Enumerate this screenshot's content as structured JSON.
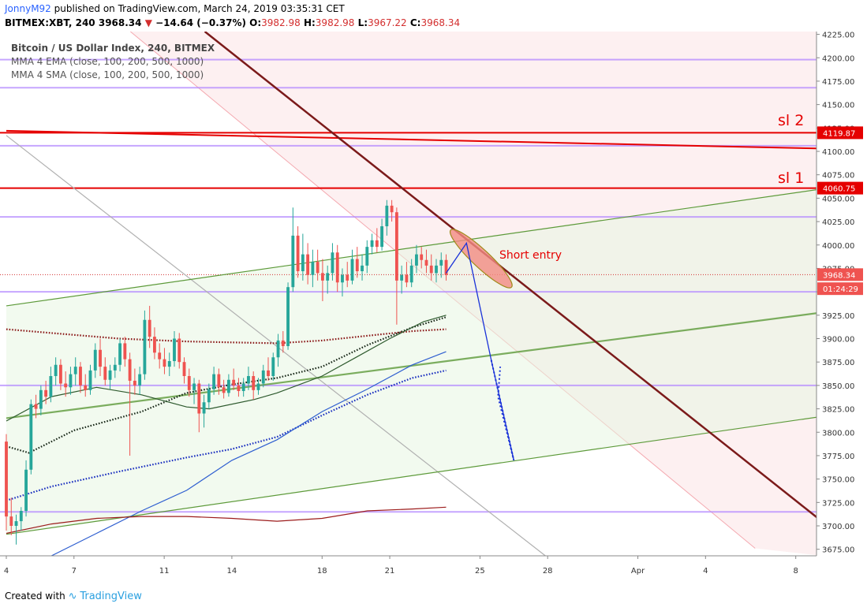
{
  "header": {
    "author": "JonnyM92",
    "published": "published on TradingView.com, March 24, 2019 03:35:31 CET",
    "symbol": "BITMEX:XBT, 240",
    "last": "3968.34",
    "change": "−14.64 (−0.37%)",
    "o_label": "O:",
    "o": "3982.98",
    "h_label": "H:",
    "h": "3982.98",
    "l_label": "L:",
    "l": "3967.22",
    "c_label": "C:",
    "c": "3968.34"
  },
  "legend": {
    "title": "Bitcoin / US Dollar Index, 240, BITMEX",
    "ema": "MMA 4 EMA (close, 100, 200, 500, 1000)",
    "sma": "MMA 4 SMA (close, 100, 200, 500, 1000)"
  },
  "annotations": {
    "sl1": "sl 1",
    "sl2": "sl 2",
    "short_entry": "Short entry"
  },
  "price_badges": {
    "sl2": "4119.87",
    "sl1": "4060.75",
    "last": "3968.34",
    "countdown": "01:24:29"
  },
  "footer": {
    "created_with": "Created with",
    "brand": "TradingView"
  },
  "colors": {
    "up": "#26a69a",
    "down": "#ef5350",
    "sl": "#e50000",
    "level": "#b388ff",
    "trend": "#7b1a1a",
    "channel": "#5d9a3a",
    "projection": "#1a32d8"
  },
  "chart_data": {
    "type": "candlestick",
    "title": "Bitcoin / US Dollar Index, 240, BITMEX",
    "x_ticks": [
      {
        "label": "4",
        "t": 0
      },
      {
        "label": "7",
        "t": 3
      },
      {
        "label": "11",
        "t": 7
      },
      {
        "label": "14",
        "t": 10
      },
      {
        "label": "18",
        "t": 14
      },
      {
        "label": "21",
        "t": 17
      },
      {
        "label": "25",
        "t": 21
      },
      {
        "label": "28",
        "t": 24
      },
      {
        "label": "Apr",
        "t": 28
      },
      {
        "label": "4",
        "t": 31
      },
      {
        "label": "8",
        "t": 35
      }
    ],
    "x_range": [
      0,
      36.2
    ],
    "ylim": [
      3668,
      4228
    ],
    "y_ticks": [
      3675,
      3700,
      3725,
      3750,
      3775,
      3800,
      3825,
      3850,
      3875,
      3900,
      3925,
      3950,
      3975,
      4000,
      4025,
      4050,
      4075,
      4100,
      4125,
      4150,
      4175,
      4200,
      4225
    ],
    "horizontal_levels": [
      4198,
      4168,
      4106,
      4030,
      3950,
      3850,
      3715
    ],
    "stop_levels": [
      4119.87,
      4060.75
    ],
    "sl2_sloped_line": {
      "points": [
        [
          0,
          4122
        ],
        [
          36.2,
          4103
        ]
      ]
    },
    "descending_trendline": {
      "points": [
        [
          8.8,
          4228
        ],
        [
          36.2,
          3704
        ]
      ]
    },
    "channel_upper": {
      "points": [
        [
          0,
          3935
        ],
        [
          36.2,
          4060
        ]
      ]
    },
    "channel_middle": {
      "points": [
        [
          0,
          3815
        ],
        [
          36.2,
          3928
        ]
      ]
    },
    "channel_lower": {
      "points": [
        [
          0,
          3691
        ],
        [
          36.2,
          3817
        ]
      ]
    },
    "gray_diagonal": {
      "points": [
        [
          0,
          4117
        ],
        [
          23.9,
          3668
        ]
      ]
    },
    "pink_zone_lower_edge": {
      "points": [
        [
          5.5,
          4228
        ],
        [
          33.2,
          3676
        ]
      ]
    },
    "short_entry_zone": {
      "center": [
        20.8,
        3988
      ],
      "from": [
        19.7,
        4016
      ],
      "to": [
        22.4,
        3955
      ]
    },
    "projection_path": [
      [
        19.5,
        3970
      ],
      [
        20.4,
        4002
      ],
      [
        21.5,
        3877
      ],
      [
        22.5,
        3770
      ],
      [
        21.8,
        3838
      ],
      [
        21.9,
        3870
      ]
    ],
    "ema_lines": [
      {
        "name": "EMA 100",
        "points": [
          [
            0,
            3785
          ],
          [
            1,
            3778
          ],
          [
            3,
            3802
          ],
          [
            6,
            3822
          ],
          [
            8,
            3842
          ],
          [
            10,
            3851
          ],
          [
            12,
            3858
          ],
          [
            14,
            3870
          ],
          [
            16,
            3893
          ],
          [
            18,
            3912
          ],
          [
            19.5,
            3923
          ]
        ]
      },
      {
        "name": "EMA 200",
        "points": [
          [
            0,
            3727
          ],
          [
            2,
            3742
          ],
          [
            5,
            3758
          ],
          [
            8,
            3773
          ],
          [
            10,
            3782
          ],
          [
            12,
            3795
          ],
          [
            14,
            3818
          ],
          [
            16,
            3840
          ],
          [
            18,
            3858
          ],
          [
            19.5,
            3866
          ]
        ]
      },
      {
        "name": "EMA 500",
        "points": [
          [
            0,
            3910
          ],
          [
            2,
            3906
          ],
          [
            5,
            3900
          ],
          [
            8,
            3897
          ],
          [
            10,
            3896
          ],
          [
            12,
            3895
          ],
          [
            14,
            3898
          ],
          [
            16,
            3903
          ],
          [
            18,
            3908
          ],
          [
            19.5,
            3910
          ]
        ]
      }
    ],
    "sma_lines": [
      {
        "name": "SMA 100",
        "points": [
          [
            0,
            3812
          ],
          [
            2,
            3838
          ],
          [
            4,
            3848
          ],
          [
            6,
            3840
          ],
          [
            8,
            3827
          ],
          [
            9,
            3825
          ],
          [
            11,
            3835
          ],
          [
            12,
            3842
          ],
          [
            14,
            3860
          ],
          [
            15.5,
            3880
          ],
          [
            17,
            3900
          ],
          [
            18.5,
            3918
          ],
          [
            19.5,
            3925
          ]
        ]
      },
      {
        "name": "SMA 200",
        "points": [
          [
            2,
            3668
          ],
          [
            4,
            3692
          ],
          [
            6,
            3716
          ],
          [
            8,
            3738
          ],
          [
            10,
            3770
          ],
          [
            12,
            3792
          ],
          [
            14,
            3822
          ],
          [
            16,
            3846
          ],
          [
            18,
            3872
          ],
          [
            19.5,
            3886
          ]
        ]
      },
      {
        "name": "SMA 500",
        "points": [
          [
            0,
            3692
          ],
          [
            2,
            3702
          ],
          [
            4,
            3708
          ],
          [
            6,
            3710
          ],
          [
            8,
            3710
          ],
          [
            10,
            3708
          ],
          [
            12,
            3705
          ],
          [
            14,
            3708
          ],
          [
            16,
            3716
          ],
          [
            18,
            3718
          ],
          [
            19.5,
            3720
          ]
        ]
      }
    ],
    "candles_ohlc": [
      [
        3790,
        3798,
        3695,
        3710
      ],
      [
        3710,
        3730,
        3690,
        3700
      ],
      [
        3700,
        3712,
        3680,
        3705
      ],
      [
        3705,
        3720,
        3695,
        3716
      ],
      [
        3716,
        3770,
        3710,
        3760
      ],
      [
        3760,
        3835,
        3755,
        3830
      ],
      [
        3830,
        3840,
        3815,
        3825
      ],
      [
        3825,
        3850,
        3818,
        3845
      ],
      [
        3845,
        3855,
        3830,
        3838
      ],
      [
        3838,
        3870,
        3832,
        3860
      ],
      [
        3860,
        3880,
        3850,
        3872
      ],
      [
        3872,
        3878,
        3845,
        3852
      ],
      [
        3852,
        3865,
        3838,
        3848
      ],
      [
        3848,
        3870,
        3840,
        3862
      ],
      [
        3862,
        3880,
        3850,
        3870
      ],
      [
        3870,
        3875,
        3842,
        3850
      ],
      [
        3850,
        3862,
        3838,
        3845
      ],
      [
        3845,
        3872,
        3840,
        3866
      ],
      [
        3866,
        3895,
        3858,
        3888
      ],
      [
        3888,
        3900,
        3860,
        3870
      ],
      [
        3870,
        3880,
        3850,
        3856
      ],
      [
        3856,
        3872,
        3846,
        3866
      ],
      [
        3866,
        3880,
        3858,
        3872
      ],
      [
        3872,
        3900,
        3865,
        3895
      ],
      [
        3895,
        3902,
        3870,
        3878
      ],
      [
        3878,
        3885,
        3775,
        3855
      ],
      [
        3855,
        3868,
        3840,
        3850
      ],
      [
        3850,
        3870,
        3840,
        3862
      ],
      [
        3862,
        3930,
        3856,
        3920
      ],
      [
        3920,
        3935,
        3890,
        3902
      ],
      [
        3902,
        3912,
        3878,
        3885
      ],
      [
        3885,
        3895,
        3868,
        3878
      ],
      [
        3878,
        3890,
        3862,
        3870
      ],
      [
        3870,
        3885,
        3860,
        3876
      ],
      [
        3876,
        3908,
        3870,
        3900
      ],
      [
        3900,
        3906,
        3868,
        3875
      ],
      [
        3875,
        3880,
        3852,
        3860
      ],
      [
        3860,
        3868,
        3838,
        3845
      ],
      [
        3845,
        3858,
        3830,
        3852
      ],
      [
        3852,
        3856,
        3800,
        3820
      ],
      [
        3820,
        3840,
        3805,
        3832
      ],
      [
        3832,
        3852,
        3825,
        3846
      ],
      [
        3846,
        3870,
        3840,
        3862
      ],
      [
        3862,
        3868,
        3840,
        3848
      ],
      [
        3848,
        3856,
        3836,
        3842
      ],
      [
        3842,
        3862,
        3838,
        3856
      ],
      [
        3856,
        3868,
        3845,
        3850
      ],
      [
        3850,
        3858,
        3838,
        3844
      ],
      [
        3844,
        3858,
        3838,
        3852
      ],
      [
        3852,
        3870,
        3845,
        3860
      ],
      [
        3860,
        3865,
        3835,
        3845
      ],
      [
        3845,
        3858,
        3840,
        3852
      ],
      [
        3852,
        3872,
        3848,
        3866
      ],
      [
        3866,
        3880,
        3855,
        3860
      ],
      [
        3860,
        3885,
        3855,
        3880
      ],
      [
        3880,
        3905,
        3870,
        3898
      ],
      [
        3898,
        3908,
        3885,
        3892
      ],
      [
        3892,
        3960,
        3888,
        3955
      ],
      [
        3955,
        4040,
        3950,
        4010
      ],
      [
        4010,
        4020,
        3965,
        3972
      ],
      [
        3972,
        4012,
        3962,
        3990
      ],
      [
        3990,
        4002,
        3958,
        3968
      ],
      [
        3968,
        3995,
        3955,
        3982
      ],
      [
        3982,
        3995,
        3962,
        3970
      ],
      [
        3970,
        3985,
        3940,
        3962
      ],
      [
        3962,
        3978,
        3948,
        3970
      ],
      [
        3970,
        4002,
        3962,
        3992
      ],
      [
        3992,
        4000,
        3950,
        3960
      ],
      [
        3960,
        3975,
        3945,
        3968
      ],
      [
        3968,
        3982,
        3955,
        3962
      ],
      [
        3962,
        3995,
        3958,
        3985
      ],
      [
        3985,
        3998,
        3965,
        3972
      ],
      [
        3972,
        3990,
        3962,
        3978
      ],
      [
        3978,
        4005,
        3970,
        3998
      ],
      [
        3998,
        4012,
        3990,
        4005
      ],
      [
        4005,
        4018,
        3992,
        3998
      ],
      [
        3998,
        4028,
        3994,
        4020
      ],
      [
        4020,
        4048,
        4010,
        4042
      ],
      [
        4042,
        4048,
        4025,
        4035
      ],
      [
        4035,
        4040,
        3915,
        3962
      ],
      [
        3962,
        3978,
        3948,
        3968
      ],
      [
        3968,
        3982,
        3955,
        3960
      ],
      [
        3960,
        3985,
        3955,
        3978
      ],
      [
        3978,
        4000,
        3970,
        3990
      ],
      [
        3990,
        3998,
        3975,
        3984
      ],
      [
        3984,
        3995,
        3970,
        3978
      ],
      [
        3978,
        3990,
        3962,
        3970
      ],
      [
        3970,
        3985,
        3960,
        3978
      ],
      [
        3978,
        3992,
        3965,
        3984
      ],
      [
        3984,
        3990,
        3962,
        3968
      ]
    ]
  }
}
